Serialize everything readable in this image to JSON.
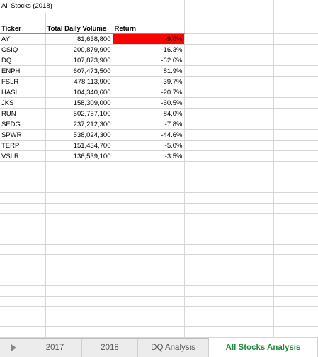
{
  "sheet": {
    "title": "All Stocks (2018)",
    "headers": [
      "Ticker",
      "Total Daily Volume",
      "Return"
    ],
    "rows": [
      [
        "AY",
        "81,638,800",
        "-9.0%"
      ],
      [
        "CSIQ",
        "200,879,900",
        "-16.3%"
      ],
      [
        "DQ",
        "107,873,900",
        "-62.6%"
      ],
      [
        "ENPH",
        "607,473,500",
        "81.9%"
      ],
      [
        "FSLR",
        "478,113,900",
        "-39.7%"
      ],
      [
        "HASI",
        "104,340,600",
        "-20.7%"
      ],
      [
        "JKS",
        "158,309,000",
        "-60.5%"
      ],
      [
        "RUN",
        "502,757,100",
        "84.0%"
      ],
      [
        "SEDG",
        "237,212,300",
        "-7.8%"
      ],
      [
        "SPWR",
        "538,024,300",
        "-44.6%"
      ],
      [
        "TERP",
        "151,434,700",
        "-5.0%"
      ],
      [
        "VSLR",
        "136,539,100",
        "-3.5%"
      ]
    ],
    "highlight_color": "#ff0000"
  },
  "tabs": [
    {
      "label": "2017",
      "active": false
    },
    {
      "label": "2018",
      "active": false
    },
    {
      "label": "DQ Analysis",
      "active": false
    },
    {
      "label": "All Stocks Analysis",
      "active": true
    }
  ],
  "colors": {
    "active_tab_text": "#1f8a3b"
  }
}
